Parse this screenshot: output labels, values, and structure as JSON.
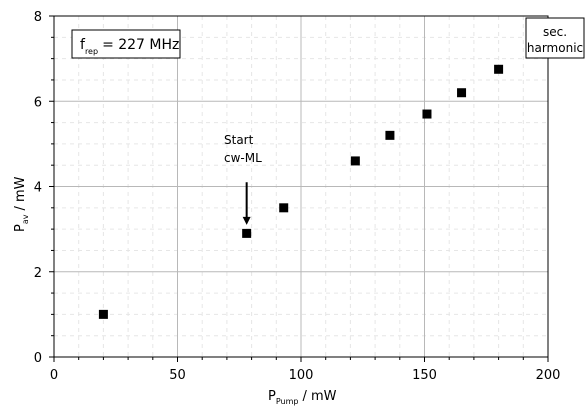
{
  "chart_data": {
    "type": "scatter",
    "xlabel_main": "P",
    "xlabel_sub": "Pump",
    "xlabel_unit": "/ mW",
    "ylabel_main": "P",
    "ylabel_sub": "av",
    "ylabel_unit": "/ mW",
    "xlim": [
      0,
      200
    ],
    "ylim": [
      0,
      8
    ],
    "x_ticks": [
      0,
      50,
      100,
      150,
      200
    ],
    "y_ticks": [
      0,
      2,
      4,
      6,
      8
    ],
    "major_grid": true,
    "minor_grid": true,
    "series": [
      {
        "marker": "square",
        "color": "#000000",
        "points": [
          {
            "x": 20,
            "y": 1.0
          },
          {
            "x": 78,
            "y": 2.9
          },
          {
            "x": 93,
            "y": 3.5
          },
          {
            "x": 122,
            "y": 4.6
          },
          {
            "x": 136,
            "y": 5.2
          },
          {
            "x": 151,
            "y": 5.7
          },
          {
            "x": 165,
            "y": 6.2
          },
          {
            "x": 180,
            "y": 6.75
          }
        ]
      }
    ],
    "annotations": {
      "rep_rate": {
        "main": "f",
        "sub": "rep",
        "value": "= 227 MHz"
      },
      "sec_harmonic": {
        "line1": "sec.",
        "line2": "harmonic"
      },
      "start_label": {
        "line1": "Start",
        "line2": "cw-ML"
      },
      "arrow_at": {
        "x": 78,
        "y_from": 4.1,
        "y_to": 3.1
      }
    }
  }
}
